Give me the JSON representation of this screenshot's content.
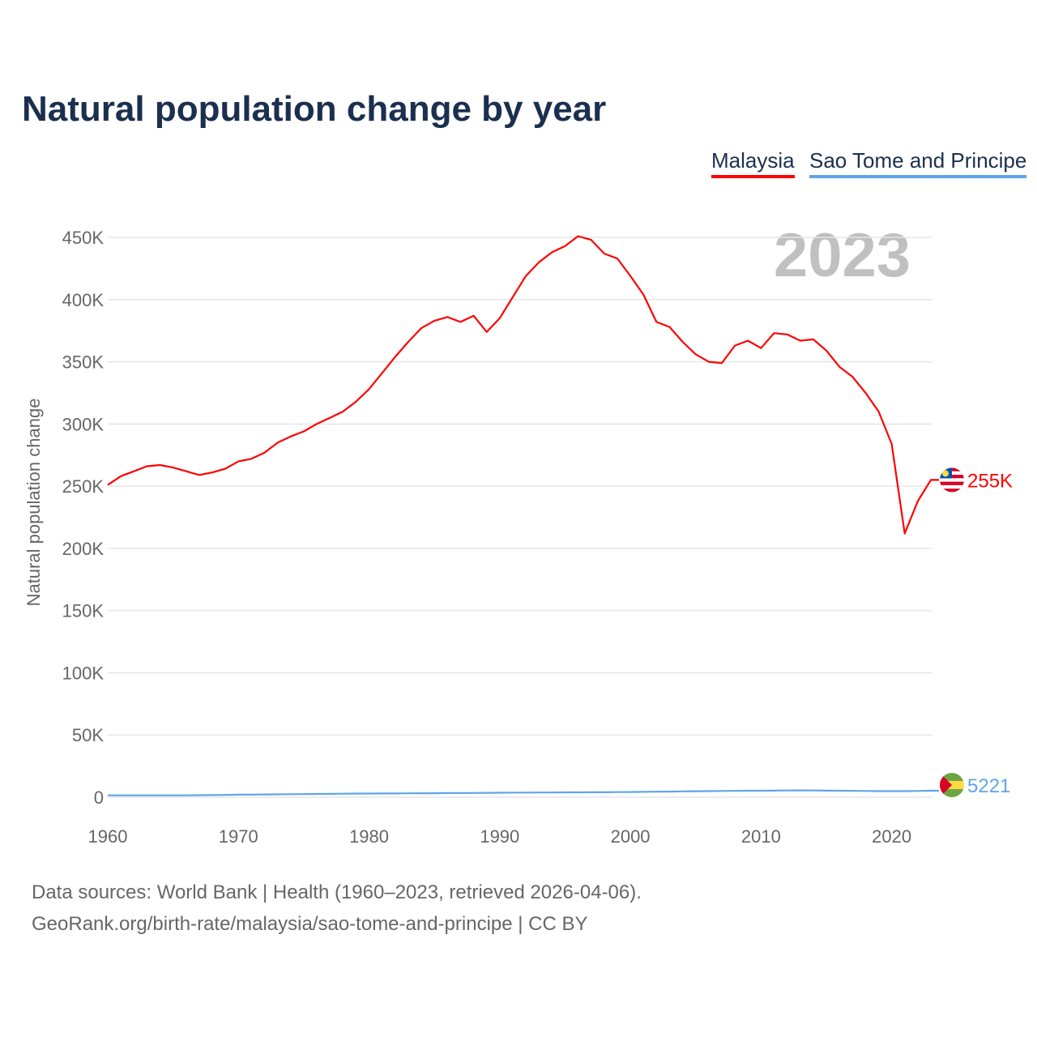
{
  "chart_data": {
    "type": "line",
    "title": "Natural population change by year",
    "xlabel": "",
    "ylabel": "Natural population change",
    "xlim": [
      1960,
      2023
    ],
    "ylim": [
      0,
      450000
    ],
    "grid": true,
    "legend_placement": "top-right",
    "current_year_label": "2023",
    "x_ticks": [
      "1960",
      "1970",
      "1980",
      "1990",
      "2000",
      "2010",
      "2020"
    ],
    "y_ticks": [
      {
        "v": 0,
        "label": "0"
      },
      {
        "v": 50000,
        "label": "50K"
      },
      {
        "v": 100000,
        "label": "100K"
      },
      {
        "v": 150000,
        "label": "150K"
      },
      {
        "v": 200000,
        "label": "200K"
      },
      {
        "v": 250000,
        "label": "250K"
      },
      {
        "v": 300000,
        "label": "300K"
      },
      {
        "v": 350000,
        "label": "350K"
      },
      {
        "v": 400000,
        "label": "400K"
      },
      {
        "v": 450000,
        "label": "450K"
      }
    ],
    "x": [
      1960,
      1961,
      1962,
      1963,
      1964,
      1965,
      1966,
      1967,
      1968,
      1969,
      1970,
      1971,
      1972,
      1973,
      1974,
      1975,
      1976,
      1977,
      1978,
      1979,
      1980,
      1981,
      1982,
      1983,
      1984,
      1985,
      1986,
      1987,
      1988,
      1989,
      1990,
      1991,
      1992,
      1993,
      1994,
      1995,
      1996,
      1997,
      1998,
      1999,
      2000,
      2001,
      2002,
      2003,
      2004,
      2005,
      2006,
      2007,
      2008,
      2009,
      2010,
      2011,
      2012,
      2013,
      2014,
      2015,
      2016,
      2017,
      2018,
      2019,
      2020,
      2021,
      2022,
      2023
    ],
    "series": [
      {
        "name": "Malaysia",
        "color": "#ff0000",
        "end_label": "255K",
        "values": [
          251000,
          258000,
          262000,
          266000,
          267000,
          265000,
          262000,
          259000,
          261000,
          264000,
          270000,
          272000,
          277000,
          285000,
          290000,
          294000,
          300000,
          305000,
          310000,
          318000,
          328000,
          341000,
          354000,
          366000,
          377000,
          383000,
          386000,
          382000,
          387000,
          374000,
          385000,
          402000,
          419000,
          430000,
          438000,
          443000,
          451000,
          448000,
          437000,
          433000,
          419000,
          404000,
          382000,
          378000,
          366000,
          356000,
          350000,
          349000,
          363000,
          367000,
          361000,
          373000,
          372000,
          367000,
          368000,
          359000,
          346000,
          338000,
          325000,
          310000,
          284000,
          212000,
          238000,
          255000
        ]
      },
      {
        "name": "Sao Tome and Principe",
        "color": "#5ea5e8",
        "end_label": "5221",
        "values": [
          1500,
          1500,
          1500,
          1500,
          1500,
          1500,
          1500,
          1600,
          1700,
          1800,
          2000,
          2100,
          2200,
          2300,
          2400,
          2500,
          2600,
          2700,
          2800,
          2900,
          2900,
          3000,
          3000,
          3100,
          3200,
          3200,
          3300,
          3300,
          3400,
          3500,
          3600,
          3700,
          3700,
          3800,
          3800,
          3900,
          3900,
          4000,
          4000,
          4100,
          4200,
          4300,
          4400,
          4500,
          4700,
          4800,
          4900,
          5000,
          5100,
          5200,
          5200,
          5300,
          5400,
          5500,
          5400,
          5300,
          5200,
          5100,
          5000,
          4900,
          4900,
          4900,
          5000,
          5221
        ]
      }
    ]
  },
  "footer": {
    "line1": "Data sources: World Bank | Health (1960–2023, retrieved 2026-04-06).",
    "line2": "GeoRank.org/birth-rate/malaysia/sao-tome-and-principe | CC BY"
  }
}
